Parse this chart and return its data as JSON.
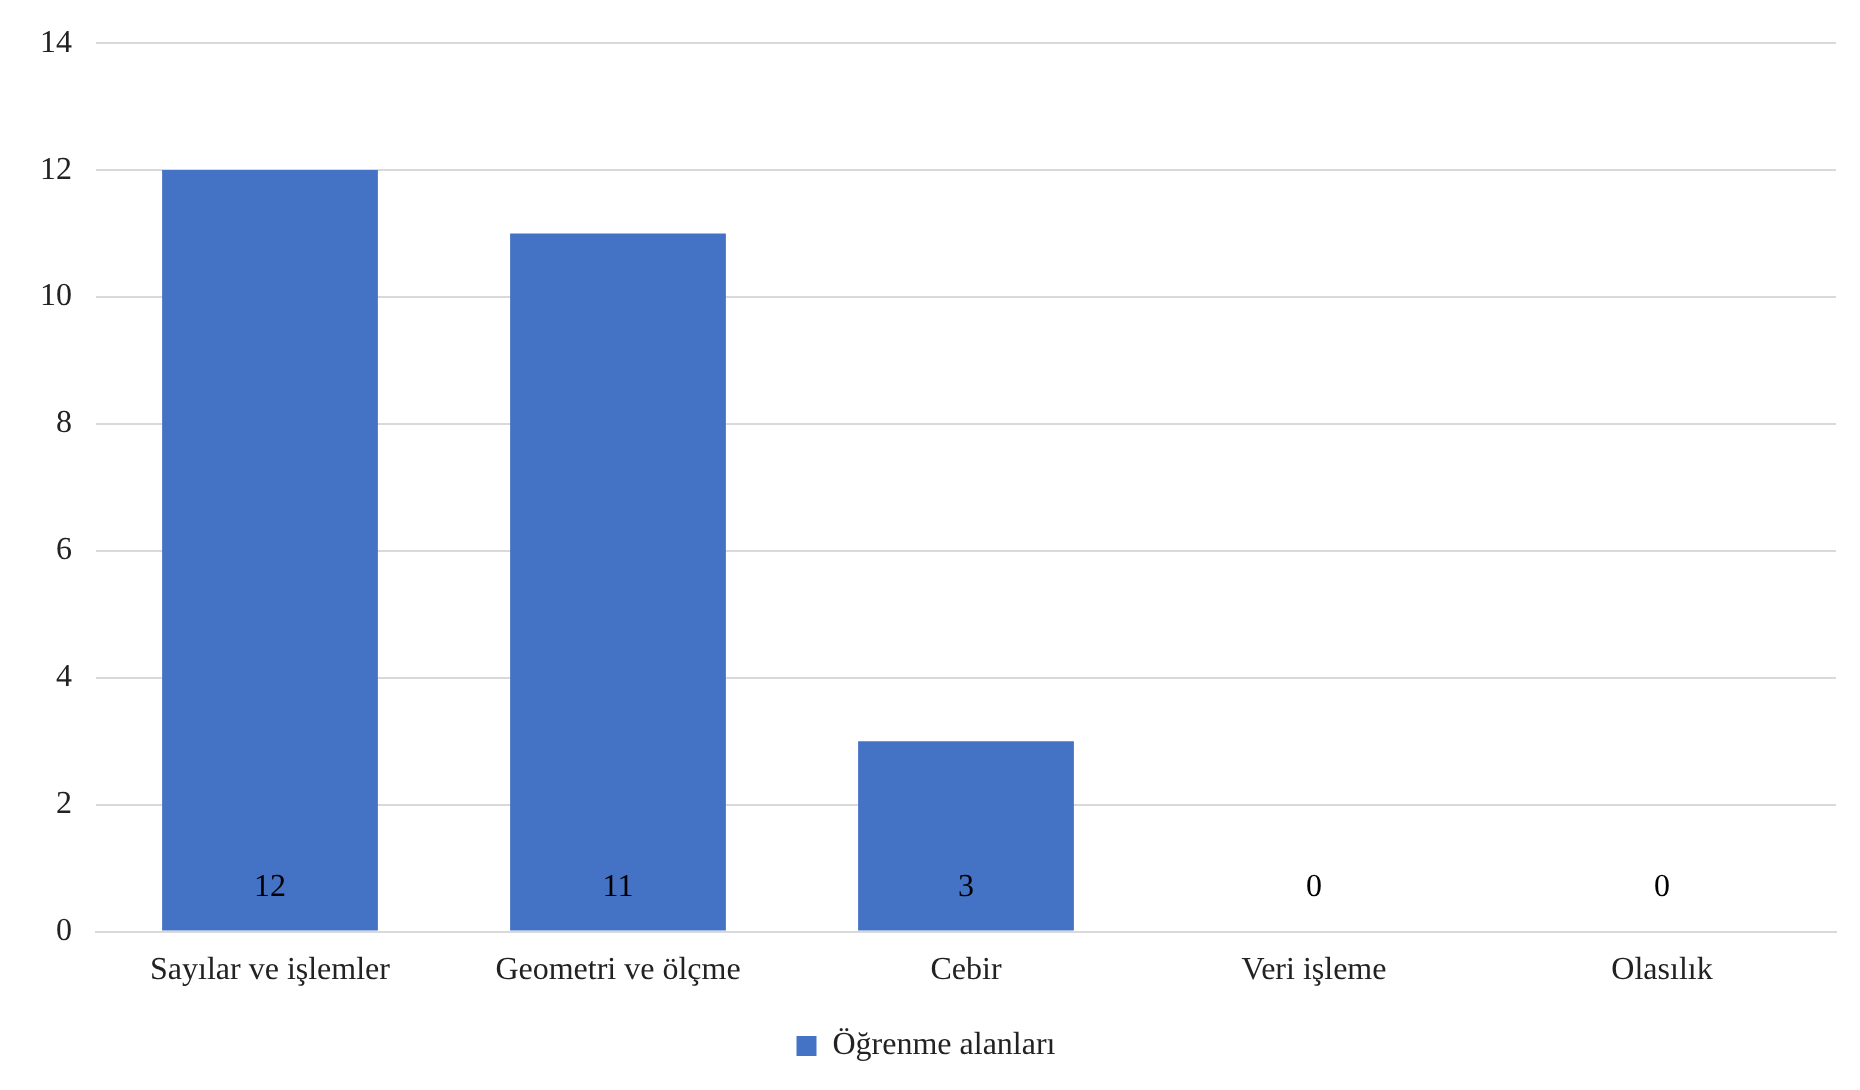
{
  "chart_data": {
    "type": "bar",
    "categories": [
      "Sayılar ve işlemler",
      "Geometri ve ölçme",
      "Cebir",
      "Veri işleme",
      "Olasılık"
    ],
    "series": [
      {
        "name": "Öğrenme alanları",
        "color": "#4472c4",
        "values": [
          12,
          11,
          3,
          0,
          0
        ]
      }
    ],
    "ylim": [
      0,
      14
    ],
    "yticks": [
      0,
      2,
      4,
      6,
      8,
      10,
      12,
      14
    ],
    "grid": "y",
    "legend": "bottom",
    "data_labels": true
  }
}
